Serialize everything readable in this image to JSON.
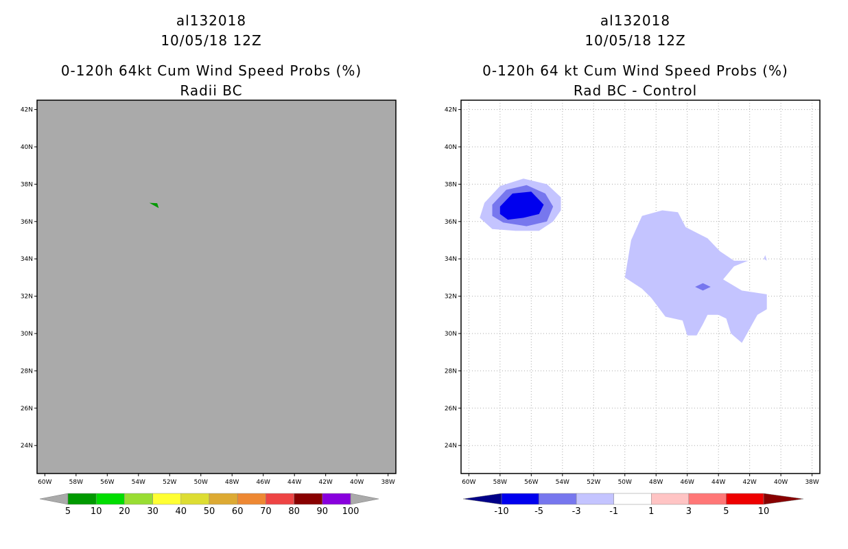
{
  "chart_data": [
    {
      "type": "filled-contour-map",
      "title_lines": [
        "al132018",
        "10/05/18 12Z"
      ],
      "subtitle_lines": [
        "0-120h 64kt Cum Wind Speed Probs (%)",
        "Radii BC"
      ],
      "xlim": [
        -60.5,
        -37.5
      ],
      "ylim": [
        22.5,
        42.5
      ],
      "x_ticks": [
        {
          "value": -60,
          "label": "60W"
        },
        {
          "value": -58,
          "label": "58W"
        },
        {
          "value": -56,
          "label": "56W"
        },
        {
          "value": -54,
          "label": "54W"
        },
        {
          "value": -52,
          "label": "52W"
        },
        {
          "value": -50,
          "label": "50W"
        },
        {
          "value": -48,
          "label": "48W"
        },
        {
          "value": -46,
          "label": "46W"
        },
        {
          "value": -44,
          "label": "44W"
        },
        {
          "value": -42,
          "label": "42W"
        },
        {
          "value": -40,
          "label": "40W"
        },
        {
          "value": -38,
          "label": "38W"
        }
      ],
      "y_ticks": [
        {
          "value": 24,
          "label": "24N"
        },
        {
          "value": 26,
          "label": "26N"
        },
        {
          "value": 28,
          "label": "28N"
        },
        {
          "value": 30,
          "label": "30N"
        },
        {
          "value": 32,
          "label": "32N"
        },
        {
          "value": 34,
          "label": "34N"
        },
        {
          "value": 36,
          "label": "36N"
        },
        {
          "value": 38,
          "label": "38N"
        },
        {
          "value": 40,
          "label": "40N"
        },
        {
          "value": 42,
          "label": "42N"
        }
      ],
      "grid": false,
      "background_color": "#aaaaaa",
      "regions": [
        {
          "level": "5-10",
          "color": "#009900",
          "points": [
            [
              -53.3,
              37.0
            ],
            [
              -52.8,
              36.98
            ],
            [
              -52.7,
              36.72
            ]
          ]
        }
      ],
      "colorbar": {
        "labels": [
          "5",
          "10",
          "20",
          "30",
          "40",
          "50",
          "60",
          "70",
          "80",
          "90",
          "100"
        ],
        "colors": [
          "#009900",
          "#00dd00",
          "#99dd33",
          "#ffff33",
          "#dddd33",
          "#ddaa33",
          "#ee8833",
          "#ee4444",
          "#880000",
          "#8800dd"
        ],
        "under_color": "#aaaaaa",
        "over_color": "#aaaaaa"
      }
    },
    {
      "type": "filled-contour-map",
      "title_lines": [
        "al132018",
        "10/05/18 12Z"
      ],
      "subtitle_lines": [
        "0-120h 64 kt Cum Wind Speed Probs (%)",
        "Rad BC - Control"
      ],
      "xlim": [
        -60.5,
        -37.5
      ],
      "ylim": [
        22.5,
        42.5
      ],
      "x_ticks": [
        {
          "value": -60,
          "label": "60W"
        },
        {
          "value": -58,
          "label": "58W"
        },
        {
          "value": -56,
          "label": "56W"
        },
        {
          "value": -54,
          "label": "54W"
        },
        {
          "value": -52,
          "label": "52W"
        },
        {
          "value": -50,
          "label": "50W"
        },
        {
          "value": -48,
          "label": "48W"
        },
        {
          "value": -46,
          "label": "46W"
        },
        {
          "value": -44,
          "label": "44W"
        },
        {
          "value": -42,
          "label": "42W"
        },
        {
          "value": -40,
          "label": "40W"
        },
        {
          "value": -38,
          "label": "38W"
        }
      ],
      "y_ticks": [
        {
          "value": 24,
          "label": "24N"
        },
        {
          "value": 26,
          "label": "26N"
        },
        {
          "value": 28,
          "label": "28N"
        },
        {
          "value": 30,
          "label": "30N"
        },
        {
          "value": 32,
          "label": "32N"
        },
        {
          "value": 34,
          "label": "34N"
        },
        {
          "value": 36,
          "label": "36N"
        },
        {
          "value": 38,
          "label": "38N"
        },
        {
          "value": 40,
          "label": "40N"
        },
        {
          "value": 42,
          "label": "42N"
        }
      ],
      "grid": true,
      "background_color": "#ffffff",
      "regions": [
        {
          "level": "-3 to -1",
          "color": "#c4c4ff",
          "points": [
            [
              -59.0,
              37.0
            ],
            [
              -58.0,
              37.9
            ],
            [
              -56.5,
              38.3
            ],
            [
              -55.0,
              38.0
            ],
            [
              -54.1,
              37.3
            ],
            [
              -54.1,
              36.6
            ],
            [
              -54.6,
              36.0
            ],
            [
              -55.5,
              35.5
            ],
            [
              -57.0,
              35.5
            ],
            [
              -58.5,
              35.6
            ],
            [
              -59.3,
              36.2
            ]
          ]
        },
        {
          "level": "-5 to -3",
          "color": "#7777ee",
          "points": [
            [
              -58.5,
              36.9
            ],
            [
              -57.6,
              37.7
            ],
            [
              -56.3,
              37.95
            ],
            [
              -55.1,
              37.5
            ],
            [
              -54.6,
              36.8
            ],
            [
              -55.0,
              36.0
            ],
            [
              -56.3,
              35.75
            ],
            [
              -57.8,
              35.95
            ],
            [
              -58.5,
              36.3
            ]
          ]
        },
        {
          "level": "-10 to -5",
          "color": "#0000ee",
          "points": [
            [
              -58.0,
              36.8
            ],
            [
              -57.2,
              37.5
            ],
            [
              -56.0,
              37.6
            ],
            [
              -55.2,
              36.9
            ],
            [
              -55.5,
              36.4
            ],
            [
              -56.5,
              36.2
            ],
            [
              -57.5,
              36.1
            ],
            [
              -58.0,
              36.4
            ]
          ]
        },
        {
          "level": "-3 to -1",
          "color": "#c4c4ff",
          "points": [
            [
              -49.6,
              35.0
            ],
            [
              -48.9,
              36.3
            ],
            [
              -47.6,
              36.6
            ],
            [
              -46.6,
              36.5
            ],
            [
              -46.1,
              35.7
            ],
            [
              -44.7,
              35.1
            ],
            [
              -43.9,
              34.4
            ],
            [
              -43.0,
              33.9
            ],
            [
              -42.1,
              33.9
            ],
            [
              -41.8,
              34.0
            ],
            [
              -43.0,
              33.6
            ],
            [
              -43.7,
              32.9
            ],
            [
              -42.5,
              32.3
            ],
            [
              -40.9,
              32.1
            ],
            [
              -40.9,
              31.3
            ],
            [
              -41.5,
              31.0
            ],
            [
              -41.9,
              30.4
            ],
            [
              -42.5,
              29.5
            ],
            [
              -43.2,
              30.0
            ],
            [
              -43.5,
              30.8
            ],
            [
              -44.0,
              31.0
            ],
            [
              -44.7,
              31.0
            ],
            [
              -45.0,
              30.5
            ],
            [
              -45.4,
              29.9
            ],
            [
              -46.0,
              29.9
            ],
            [
              -46.3,
              30.7
            ],
            [
              -47.4,
              30.9
            ],
            [
              -48.3,
              31.9
            ],
            [
              -48.9,
              32.4
            ],
            [
              -50.0,
              33.0
            ],
            [
              -49.8,
              34.0
            ]
          ]
        },
        {
          "level": "-3 to -1",
          "color": "#c4c4ff",
          "points": [
            [
              -41.1,
              34.0
            ],
            [
              -40.9,
              33.9
            ],
            [
              -41.0,
              34.2
            ]
          ]
        },
        {
          "level": "-5 to -3",
          "color": "#7777ee",
          "points": [
            [
              -45.5,
              32.5
            ],
            [
              -45.0,
              32.7
            ],
            [
              -44.5,
              32.5
            ],
            [
              -45.0,
              32.3
            ]
          ]
        }
      ],
      "colorbar": {
        "labels": [
          "-10",
          "-5",
          "-3",
          "-1",
          "1",
          "3",
          "5",
          "10"
        ],
        "colors": [
          "#0000ee",
          "#7777ee",
          "#c4c4ff",
          "#ffffff",
          "#ffc4c4",
          "#ff7777",
          "#ee0000"
        ],
        "under_color": "#000088",
        "over_color": "#880000"
      }
    }
  ]
}
